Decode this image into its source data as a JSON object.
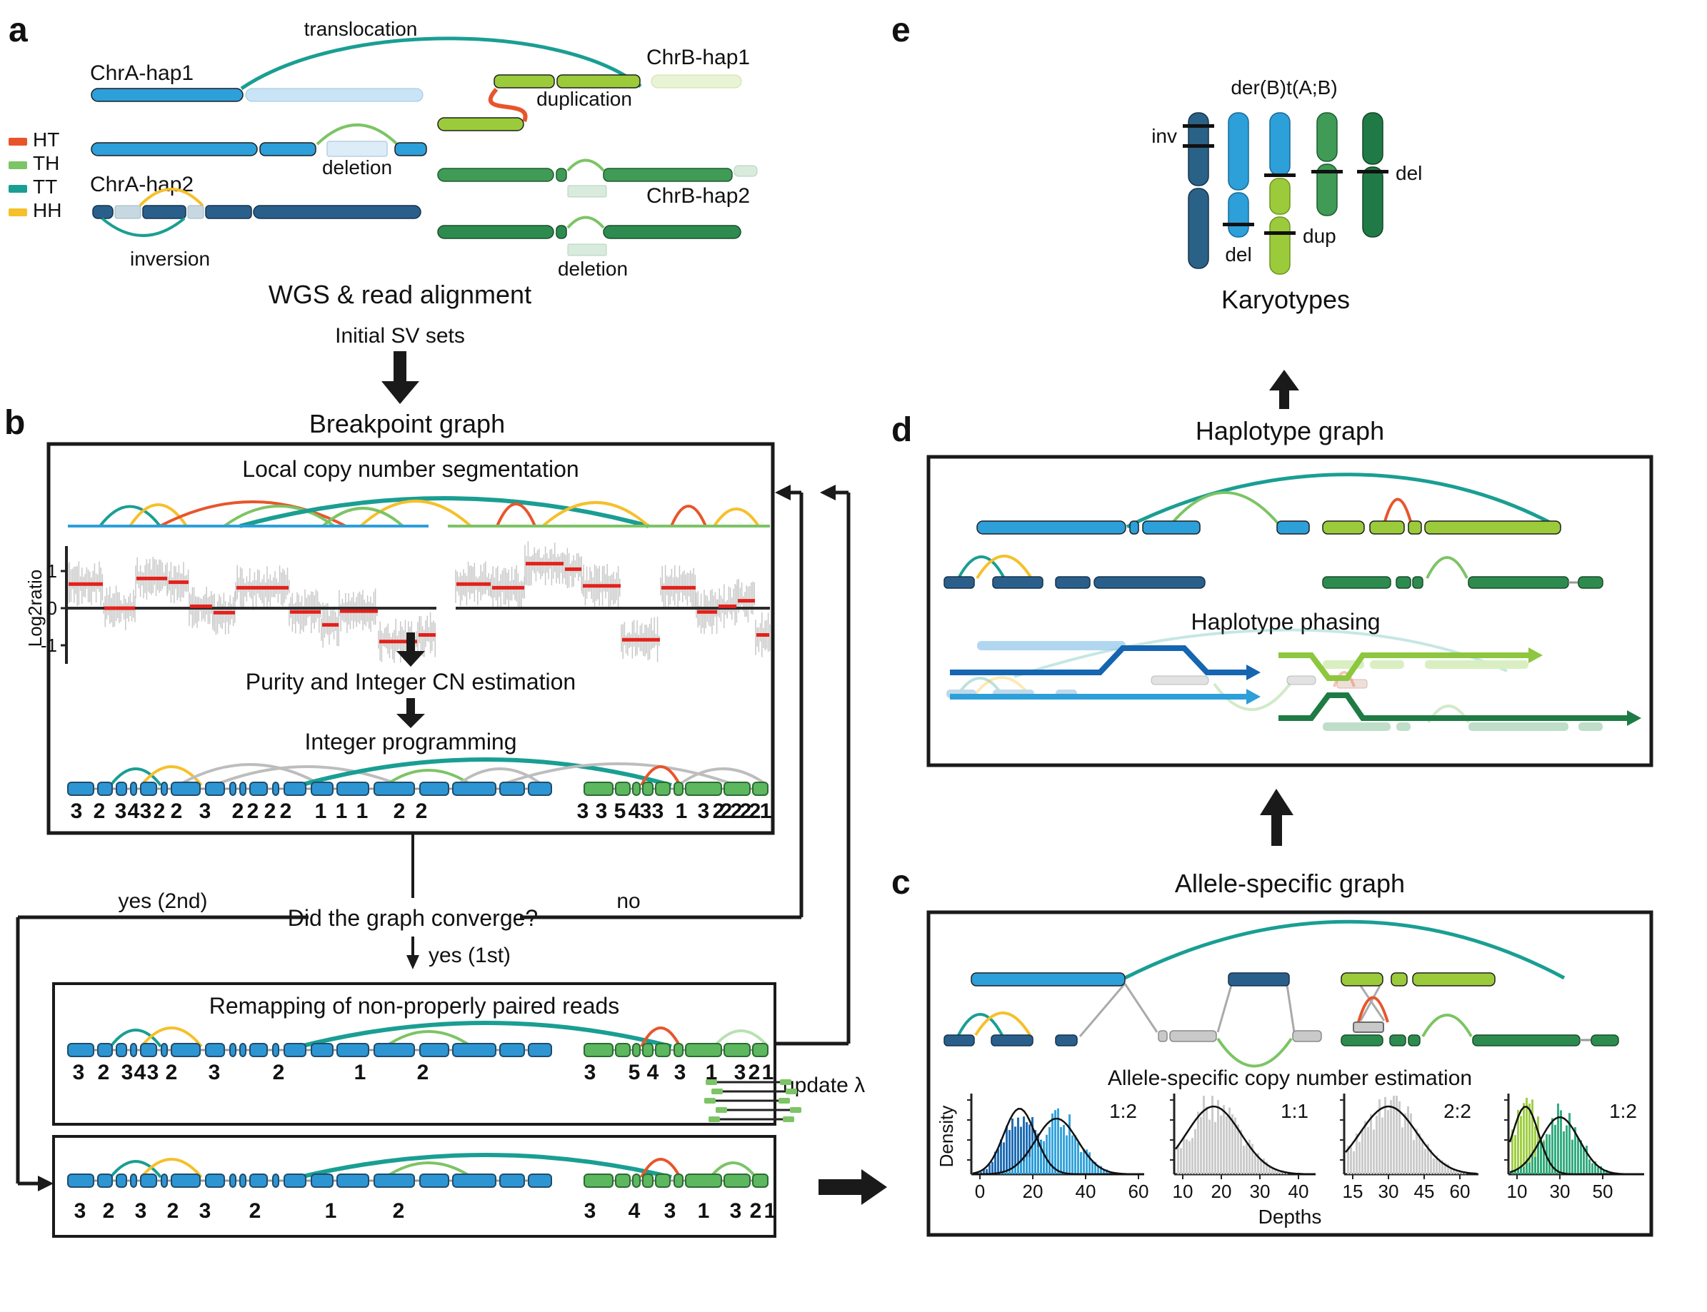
{
  "colors": {
    "bright_blue": "#2D9FD9",
    "pale_blue": "#C9E4F6",
    "dark_blue": "#2A5F8C",
    "steel_pale": "#C7D8E2",
    "yellow_green": "#9BCB3B",
    "pale_yellow_green": "#E9F3D5",
    "mid_green": "#3F9B55",
    "dark_green": "#2E8B4F",
    "pale_green": "#D8EBDD",
    "teal": "#1A9E93",
    "light_green_arc": "#7CC465",
    "orange_red": "#E8552B",
    "yellow": "#F5C02A",
    "gray_arc": "#BDBDBD",
    "noise_gray": "#C8C8C8",
    "median_red": "#E3211B",
    "number_gray": "#9A9A9A",
    "chrom_blue": "#2E95D3",
    "chrom_green": "#5CB75F"
  },
  "panel_a": {
    "label": "a",
    "translocation": "translocation",
    "chra_hap1": "ChrA-hap1",
    "chra_hap2": "ChrA-hap2",
    "chrb_hap1": "ChrB-hap1",
    "chrb_hap2": "ChrB-hap2",
    "duplication": "duplication",
    "deletion_left": "deletion",
    "deletion_right": "deletion",
    "inversion": "inversion",
    "legend": [
      {
        "label": "HT",
        "color": "#E8552B"
      },
      {
        "label": "TH",
        "color": "#7CC465"
      },
      {
        "label": "TT",
        "color": "#1A9E93"
      },
      {
        "label": "HH",
        "color": "#F5C02A"
      }
    ]
  },
  "flow": {
    "wgs": "WGS & read alignment",
    "initial_sv": "Initial SV sets"
  },
  "panel_b": {
    "label": "b",
    "title": "Breakpoint graph",
    "segmentation_title": "Local copy number segmentation",
    "log2_label": "Log2ratio",
    "log2_ticks": [
      "1",
      "0",
      "-1"
    ],
    "purity_title": "Purity and Integer CN estimation",
    "integer_title": "Integer programming",
    "cn_left": [
      {
        "x": 107,
        "v": "3"
      },
      {
        "x": 139,
        "v": "2"
      },
      {
        "x": 169,
        "v": "3"
      },
      {
        "x": 187,
        "v": "4",
        "g": 1
      },
      {
        "x": 204,
        "v": "3"
      },
      {
        "x": 223,
        "v": "2"
      },
      {
        "x": 247,
        "v": "2",
        "g": 1
      },
      {
        "x": 287,
        "v": "3"
      },
      {
        "x": 333,
        "v": "2",
        "g": 1
      },
      {
        "x": 354,
        "v": "2",
        "g": 1
      },
      {
        "x": 378,
        "v": "2"
      },
      {
        "x": 400,
        "v": "2",
        "g": 1
      },
      {
        "x": 449,
        "v": "1"
      },
      {
        "x": 478,
        "v": "1"
      },
      {
        "x": 507,
        "v": "1"
      },
      {
        "x": 559,
        "v": "2"
      },
      {
        "x": 590,
        "v": "2",
        "g": 1
      }
    ],
    "cn_right": [
      {
        "x": 816,
        "v": "3"
      },
      {
        "x": 842,
        "v": "3"
      },
      {
        "x": 868,
        "v": "5",
        "g": 1
      },
      {
        "x": 888,
        "v": "4"
      },
      {
        "x": 904,
        "v": "3"
      },
      {
        "x": 921,
        "v": "3"
      },
      {
        "x": 954,
        "v": "1"
      },
      {
        "x": 985,
        "v": "3"
      },
      {
        "x": 1006,
        "v": "2"
      },
      {
        "x": 1017,
        "v": "2",
        "g": 1
      },
      {
        "x": 1031,
        "v": "2"
      },
      {
        "x": 1044,
        "v": "2"
      },
      {
        "x": 1057,
        "v": "2",
        "g": 1
      },
      {
        "x": 1072,
        "v": "1"
      }
    ]
  },
  "converge": {
    "question": "Did the graph converge?",
    "yes_second": "yes (2nd)",
    "no": "no",
    "yes_first": "yes (1st)"
  },
  "remapping": {
    "title": "Remapping of non-properly paired reads",
    "update_lambda": "update λ",
    "cn_left": [
      {
        "x": 110,
        "v": "3"
      },
      {
        "x": 145,
        "v": "2"
      },
      {
        "x": 178,
        "v": "3"
      },
      {
        "x": 196,
        "v": "4",
        "g": 1
      },
      {
        "x": 214,
        "v": "3"
      },
      {
        "x": 240,
        "v": "2"
      },
      {
        "x": 300,
        "v": "3"
      },
      {
        "x": 390,
        "v": "2"
      },
      {
        "x": 504,
        "v": "1"
      },
      {
        "x": 592,
        "v": "2"
      }
    ],
    "cn_right": [
      {
        "x": 826,
        "v": "3"
      },
      {
        "x": 888,
        "v": "5",
        "g": 1
      },
      {
        "x": 914,
        "v": "4"
      },
      {
        "x": 952,
        "v": "3"
      },
      {
        "x": 996,
        "v": "1"
      },
      {
        "x": 1036,
        "v": "3"
      },
      {
        "x": 1056,
        "v": "2",
        "g": 1
      },
      {
        "x": 1075,
        "v": "1"
      }
    ]
  },
  "final_panel": {
    "cn_left": [
      {
        "x": 112,
        "v": "3"
      },
      {
        "x": 152,
        "v": "2"
      },
      {
        "x": 197,
        "v": "3"
      },
      {
        "x": 242,
        "v": "2"
      },
      {
        "x": 287,
        "v": "3"
      },
      {
        "x": 357,
        "v": "2"
      },
      {
        "x": 463,
        "v": "1"
      },
      {
        "x": 558,
        "v": "2"
      }
    ],
    "cn_right": [
      {
        "x": 826,
        "v": "3"
      },
      {
        "x": 888,
        "v": "4"
      },
      {
        "x": 938,
        "v": "3"
      },
      {
        "x": 985,
        "v": "1"
      },
      {
        "x": 1030,
        "v": "3"
      },
      {
        "x": 1058,
        "v": "2"
      },
      {
        "x": 1078,
        "v": "1"
      }
    ]
  },
  "panel_c": {
    "label": "c",
    "title": "Allele-specific graph",
    "estimation_title": "Allele-specific copy number estimation",
    "density_label": "Density",
    "depths_label": "Depths",
    "plots": [
      {
        "ratio": "1:2",
        "ticks": [
          "0",
          "20",
          "40",
          "60"
        ]
      },
      {
        "ratio": "1:1",
        "ticks": [
          "10",
          "20",
          "30",
          "40"
        ]
      },
      {
        "ratio": "2:2",
        "ticks": [
          "15",
          "30",
          "45",
          "60"
        ]
      },
      {
        "ratio": "1:2",
        "ticks": [
          "10",
          "30",
          "50"
        ]
      }
    ]
  },
  "panel_d": {
    "label": "d",
    "title": "Haplotype graph",
    "phasing_title": "Haplotype phasing"
  },
  "panel_e": {
    "label": "e",
    "derivative": "der(B)t(A;B)",
    "inv": "inv",
    "del_light_blue": "del",
    "dup": "dup",
    "del_green": "del",
    "title": "Karyotypes"
  },
  "chart_data": [
    {
      "type": "line",
      "title": "Local copy number segmentation",
      "ylabel": "Log2ratio",
      "ylim": [
        -1.4,
        1.4
      ],
      "yticks": [
        1,
        0,
        -1
      ],
      "segments": [
        {
          "x0": 95,
          "x1": 145,
          "log2": 0.65
        },
        {
          "x0": 145,
          "x1": 190,
          "log2": 0.0
        },
        {
          "x0": 190,
          "x1": 235,
          "log2": 0.8
        },
        {
          "x0": 235,
          "x1": 265,
          "log2": 0.7
        },
        {
          "x0": 265,
          "x1": 298,
          "log2": 0.05
        },
        {
          "x0": 298,
          "x1": 330,
          "log2": -0.12
        },
        {
          "x0": 330,
          "x1": 405,
          "log2": 0.55
        },
        {
          "x0": 405,
          "x1": 450,
          "log2": -0.1
        },
        {
          "x0": 450,
          "x1": 475,
          "log2": -0.45
        },
        {
          "x0": 475,
          "x1": 530,
          "log2": -0.08
        },
        {
          "x0": 530,
          "x1": 585,
          "log2": -0.9
        },
        {
          "x0": 585,
          "x1": 611,
          "log2": -0.72
        },
        {
          "x0": 638,
          "x1": 688,
          "log2": 0.65
        },
        {
          "x0": 688,
          "x1": 735,
          "log2": 0.55
        },
        {
          "x0": 735,
          "x1": 790,
          "log2": 1.2
        },
        {
          "x0": 790,
          "x1": 815,
          "log2": 1.05
        },
        {
          "x0": 815,
          "x1": 870,
          "log2": 0.6
        },
        {
          "x0": 870,
          "x1": 925,
          "log2": -0.85
        },
        {
          "x0": 925,
          "x1": 975,
          "log2": 0.55
        },
        {
          "x0": 975,
          "x1": 1005,
          "log2": -0.1
        },
        {
          "x0": 1005,
          "x1": 1032,
          "log2": 0.05
        },
        {
          "x0": 1032,
          "x1": 1058,
          "log2": 0.2
        },
        {
          "x0": 1058,
          "x1": 1078,
          "log2": -0.72
        }
      ]
    },
    {
      "type": "area",
      "title": "Allele-specific copy number estimation",
      "xlabel": "Depths",
      "ylabel": "Density",
      "plots": [
        {
          "ratio": "1:2",
          "xticks": [
            0,
            20,
            40,
            60
          ],
          "components": [
            {
              "mean": 15,
              "sd": 6,
              "color": "#1565B0",
              "peak": 92
            },
            {
              "mean": 29,
              "sd": 8,
              "color": "#2D9FD9",
              "peak": 78
            }
          ]
        },
        {
          "ratio": "1:1",
          "xticks": [
            10,
            20,
            30,
            40
          ],
          "components": [
            {
              "mean": 18,
              "sd": 7,
              "color": "#C8C8C8",
              "peak": 95
            }
          ]
        },
        {
          "ratio": "2:2",
          "xticks": [
            15,
            30,
            45,
            60
          ],
          "components": [
            {
              "mean": 30,
              "sd": 12,
              "color": "#C8C8C8",
              "peak": 95
            }
          ]
        },
        {
          "ratio": "1:2",
          "xticks": [
            10,
            30,
            50
          ],
          "components": [
            {
              "mean": 14,
              "sd": 6,
              "color": "#9BCB3B",
              "peak": 95
            },
            {
              "mean": 30,
              "sd": 9,
              "color": "#2AA87A",
              "peak": 80
            }
          ]
        }
      ]
    }
  ]
}
